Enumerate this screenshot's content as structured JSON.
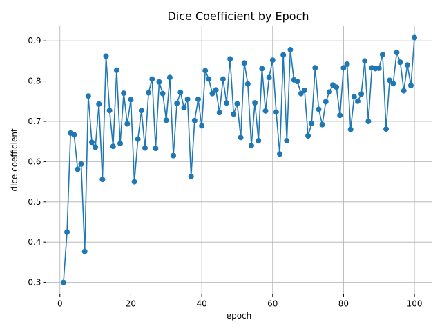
{
  "chart_data": {
    "type": "line",
    "title": "Dice Coefficient by Epoch",
    "xlabel": "epoch",
    "ylabel": "dice coefficient",
    "xlim": [
      -3.95,
      104.95
    ],
    "ylim": [
      0.2711,
      0.9371
    ],
    "xticks": [
      0,
      20,
      40,
      60,
      80,
      100
    ],
    "yticks": [
      0.3,
      0.4,
      0.5,
      0.6,
      0.7,
      0.8,
      0.9
    ],
    "xtick_labels": [
      "0",
      "20",
      "40",
      "60",
      "80",
      "100"
    ],
    "ytick_labels": [
      "0.3",
      "0.4",
      "0.5",
      "0.6",
      "0.7",
      "0.8",
      "0.9"
    ],
    "grid": true,
    "marker": "circle",
    "series": [
      {
        "color": "#1f77b4",
        "x": [
          1,
          2,
          3,
          4,
          5,
          6,
          7,
          8,
          9,
          10,
          11,
          12,
          13,
          14,
          15,
          16,
          17,
          18,
          19,
          20,
          21,
          22,
          23,
          24,
          25,
          26,
          27,
          28,
          29,
          30,
          31,
          32,
          33,
          34,
          35,
          36,
          37,
          38,
          39,
          40,
          41,
          42,
          43,
          44,
          45,
          46,
          47,
          48,
          49,
          50,
          51,
          52,
          53,
          54,
          55,
          56,
          57,
          58,
          59,
          60,
          61,
          62,
          63,
          64,
          65,
          66,
          67,
          68,
          69,
          70,
          71,
          72,
          73,
          74,
          75,
          76,
          77,
          78,
          79,
          80,
          81,
          82,
          83,
          84,
          85,
          86,
          87,
          88,
          89,
          90,
          91,
          92,
          93,
          94,
          95,
          96,
          97,
          98,
          99,
          100
        ],
        "values": [
          0.3,
          0.425,
          0.671,
          0.667,
          0.581,
          0.594,
          0.377,
          0.763,
          0.648,
          0.636,
          0.743,
          0.556,
          0.862,
          0.727,
          0.638,
          0.827,
          0.645,
          0.77,
          0.694,
          0.754,
          0.55,
          0.656,
          0.727,
          0.634,
          0.771,
          0.805,
          0.633,
          0.798,
          0.769,
          0.703,
          0.809,
          0.615,
          0.745,
          0.772,
          0.734,
          0.755,
          0.563,
          0.702,
          0.755,
          0.689,
          0.826,
          0.805,
          0.769,
          0.778,
          0.722,
          0.805,
          0.746,
          0.855,
          0.718,
          0.744,
          0.66,
          0.845,
          0.793,
          0.64,
          0.746,
          0.652,
          0.831,
          0.726,
          0.809,
          0.852,
          0.723,
          0.619,
          0.865,
          0.652,
          0.878,
          0.803,
          0.799,
          0.769,
          0.777,
          0.664,
          0.695,
          0.833,
          0.73,
          0.692,
          0.749,
          0.773,
          0.79,
          0.785,
          0.715,
          0.833,
          0.842,
          0.68,
          0.761,
          0.75,
          0.768,
          0.85,
          0.7,
          0.833,
          0.831,
          0.832,
          0.866,
          0.681,
          0.802,
          0.794,
          0.871,
          0.847,
          0.776,
          0.84,
          0.789,
          0.908
        ]
      }
    ]
  }
}
